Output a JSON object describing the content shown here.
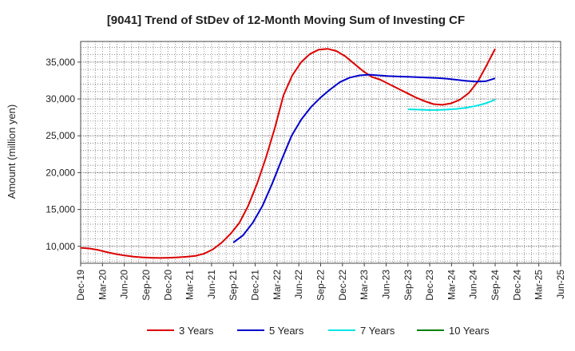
{
  "chart_data": {
    "type": "line",
    "title": "[9041]  Trend of StDev of 12-Month Moving Sum of Investing CF",
    "ylabel": "Amount (million yen)",
    "xlabel": "",
    "ylim": [
      7700,
      37800
    ],
    "yticks": [
      10000,
      15000,
      20000,
      25000,
      30000,
      35000
    ],
    "ytick_labels": [
      "10,000",
      "15,000",
      "20,000",
      "25,000",
      "30,000",
      "35,000"
    ],
    "x_categories": [
      "Dec-19",
      "Mar-20",
      "Jun-20",
      "Sep-20",
      "Dec-20",
      "Mar-21",
      "Jun-21",
      "Sep-21",
      "Dec-21",
      "Mar-22",
      "Jun-22",
      "Sep-22",
      "Dec-22",
      "Mar-23",
      "Jun-23",
      "Sep-23",
      "Dec-23",
      "Mar-24",
      "Jun-24",
      "Sep-24",
      "Dec-24",
      "Mar-25"
    ],
    "x_tick_labels": [
      "Dec-19",
      "Mar-20",
      "Jun-20",
      "Sep-20",
      "Dec-20",
      "Mar-21",
      "Jun-21",
      "Sep-21",
      "Dec-21",
      "Mar-22",
      "Jun-22",
      "Sep-22",
      "Dec-22",
      "Mar-23",
      "Jun-23",
      "Sep-23",
      "Dec-23",
      "Mar-24",
      "Jun-24",
      "Sep-24",
      "Dec-24",
      "Mar-25"
    ],
    "x_end_label": "Jun-25",
    "grid": true,
    "legend_position": "bottom",
    "series": [
      {
        "name": "3 Years",
        "color": "#dd0000",
        "start_index": 0,
        "values": [
          9800,
          9700,
          9500,
          9200,
          8950,
          8750,
          8600,
          8500,
          8450,
          8420,
          8450,
          8500,
          8580,
          8700,
          9000,
          9600,
          10500,
          11700,
          13200,
          15500,
          18500,
          22000,
          26000,
          30500,
          33200,
          35000,
          36100,
          36700,
          36800,
          36500,
          35800,
          34800,
          33800,
          33000,
          32600,
          32000,
          31400,
          30800,
          30200,
          29700,
          29300,
          29200,
          29400,
          29900,
          30800,
          32300,
          34500,
          36800
        ]
      },
      {
        "name": "5 Years",
        "color": "#0000cc",
        "start_index": 21,
        "values": [
          10500,
          11500,
          13200,
          15500,
          18500,
          21800,
          25000,
          27200,
          28900,
          30200,
          31300,
          32300,
          32900,
          33200,
          33300,
          33200,
          33100,
          33050,
          33000,
          32950,
          32900,
          32850,
          32750,
          32600,
          32450,
          32350,
          32400,
          32800
        ]
      },
      {
        "name": "7 Years",
        "color": "#00e5e5",
        "start_index": 33,
        "values": [
          28600,
          28550,
          28500,
          28500,
          28550,
          28650,
          28800,
          29050,
          29400,
          29900
        ]
      },
      {
        "name": "10 Years",
        "color": "#008000",
        "start_index": 0,
        "values": []
      }
    ]
  }
}
